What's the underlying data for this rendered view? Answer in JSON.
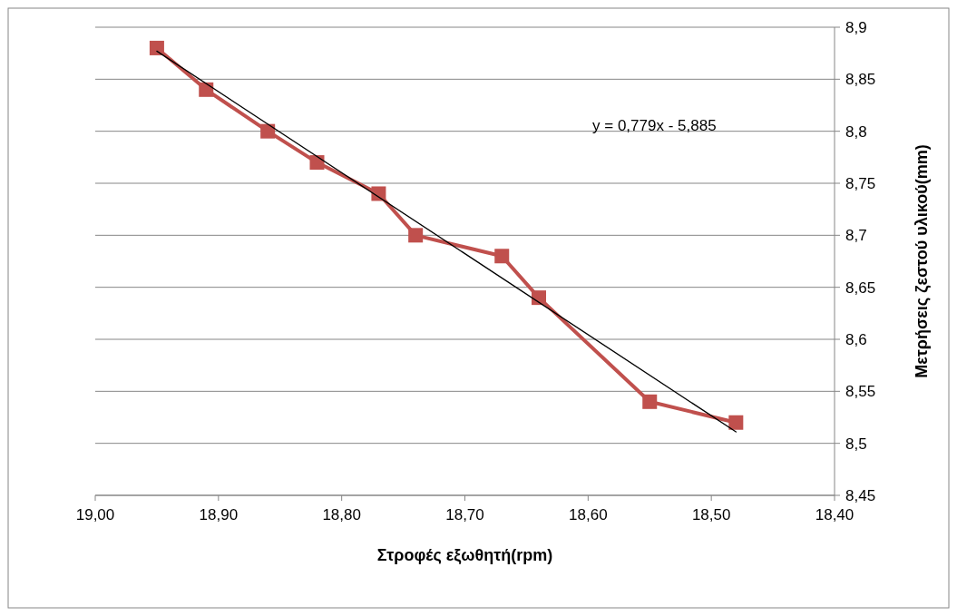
{
  "chart_data": {
    "type": "line",
    "xlabel": "Στροφές εξωθητή(rpm)",
    "ylabel": "Μετρήσεις ζεστού υλικού(mm)",
    "xlim": [
      19.0,
      18.4
    ],
    "xticks": [
      {
        "value": 19.0,
        "label": "19,00"
      },
      {
        "value": 18.9,
        "label": "18,90"
      },
      {
        "value": 18.8,
        "label": "18,80"
      },
      {
        "value": 18.7,
        "label": "18,70"
      },
      {
        "value": 18.6,
        "label": "18,60"
      },
      {
        "value": 18.5,
        "label": "18,50"
      },
      {
        "value": 18.4,
        "label": "18,40"
      }
    ],
    "ylim": [
      8.45,
      8.9
    ],
    "yticks": [
      {
        "value": 8.45,
        "label": "8,45"
      },
      {
        "value": 8.5,
        "label": "8,5"
      },
      {
        "value": 8.55,
        "label": "8,55"
      },
      {
        "value": 8.6,
        "label": "8,6"
      },
      {
        "value": 8.65,
        "label": "8,65"
      },
      {
        "value": 8.7,
        "label": "8,7"
      },
      {
        "value": 8.75,
        "label": "8,75"
      },
      {
        "value": 8.8,
        "label": "8,8"
      },
      {
        "value": 8.85,
        "label": "8,85"
      },
      {
        "value": 8.9,
        "label": "8,9"
      }
    ],
    "grid": "y",
    "series": [
      {
        "color": "#c0504d",
        "marker": "square",
        "x": [
          18.95,
          18.91,
          18.86,
          18.82,
          18.77,
          18.74,
          18.67,
          18.64,
          18.55,
          18.48
        ],
        "values": [
          8.88,
          8.84,
          8.8,
          8.77,
          8.74,
          8.7,
          8.68,
          8.64,
          8.54,
          8.52
        ]
      },
      {
        "color": "#000000",
        "marker": "none",
        "x": [
          18.95,
          18.48
        ],
        "values": [
          8.877,
          8.511
        ]
      }
    ],
    "annotations": [
      "y = 0,779x - 5,885"
    ]
  }
}
